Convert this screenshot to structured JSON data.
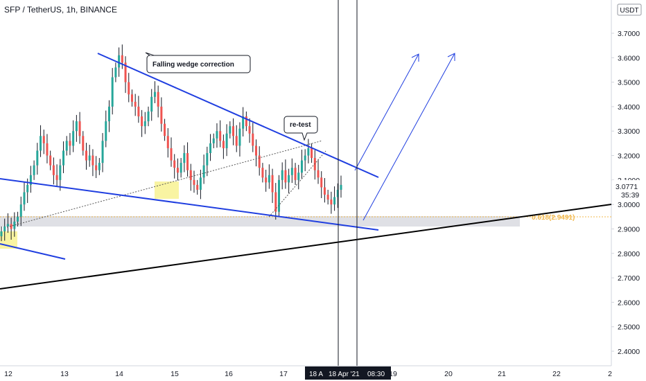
{
  "header": {
    "title": "SFP / TetherUS, 1h, BINANCE"
  },
  "currency_button": "USDT",
  "chart_data": {
    "type": "candlestick",
    "symbol": "SFP / TetherUS",
    "interval": "1h",
    "exchange": "BINANCE",
    "y_ticks": [
      "3.7000",
      "3.6000",
      "3.5000",
      "3.4000",
      "3.3000",
      "3.2000",
      "3.1000",
      "3.0000",
      "2.9000",
      "2.8000",
      "2.7000",
      "2.6000",
      "2.5000",
      "2.4000"
    ],
    "x_ticks": [
      "12",
      "13",
      "14",
      "15",
      "16",
      "17",
      "18",
      "19",
      "20",
      "21",
      "22",
      "2"
    ],
    "ylim": [
      2.36,
      3.8
    ],
    "last_price": "3.0771",
    "countdown": "35:39",
    "fib_label": "0.618(2.9491)",
    "fib_level": 2.9491,
    "crosshair_labels": [
      "18 A",
      "18 Apr '21",
      "08:30"
    ],
    "annotations": [
      {
        "text": "Falling wedge correction"
      },
      {
        "text": "re-test"
      }
    ],
    "up_color": "#26a69a",
    "down_color": "#ef5350",
    "trendline_color": "#1f3ee0",
    "candles_close": [
      2.89,
      2.91,
      2.92,
      2.9,
      2.93,
      2.95,
      3.0,
      3.05,
      3.08,
      3.12,
      3.16,
      3.22,
      3.28,
      3.25,
      3.2,
      3.16,
      3.12,
      3.1,
      3.16,
      3.22,
      3.26,
      3.24,
      3.3,
      3.34,
      3.28,
      3.22,
      3.18,
      3.2,
      3.16,
      3.14,
      3.17,
      3.26,
      3.34,
      3.4,
      3.52,
      3.56,
      3.61,
      3.58,
      3.5,
      3.45,
      3.42,
      3.4,
      3.36,
      3.32,
      3.34,
      3.38,
      3.44,
      3.46,
      3.4,
      3.33,
      3.28,
      3.23,
      3.18,
      3.15,
      3.13,
      3.17,
      3.21,
      3.14,
      3.1,
      3.08,
      3.06,
      3.11,
      3.16,
      3.21,
      3.25,
      3.27,
      3.3,
      3.26,
      3.23,
      3.29,
      3.32,
      3.28,
      3.24,
      3.31,
      3.36,
      3.32,
      3.29,
      3.24,
      3.2,
      3.15,
      3.11,
      3.09,
      3.12,
      3.05,
      2.97,
      3.1,
      3.14,
      3.09,
      3.12,
      3.15,
      3.1,
      3.13,
      3.18,
      3.2,
      3.23,
      3.19,
      3.14,
      3.11,
      3.07,
      3.04,
      3.02,
      3.0,
      3.03,
      3.06,
      3.08
    ],
    "drawings": [
      "falling wedge upper trendline",
      "falling wedge lower trendline",
      "black ascending support trendline",
      "dotted channel lines",
      "two blue projection arrows",
      "grey horizontal support zone",
      "yellow highlight boxes",
      "two vertical crosshair lines"
    ]
  }
}
